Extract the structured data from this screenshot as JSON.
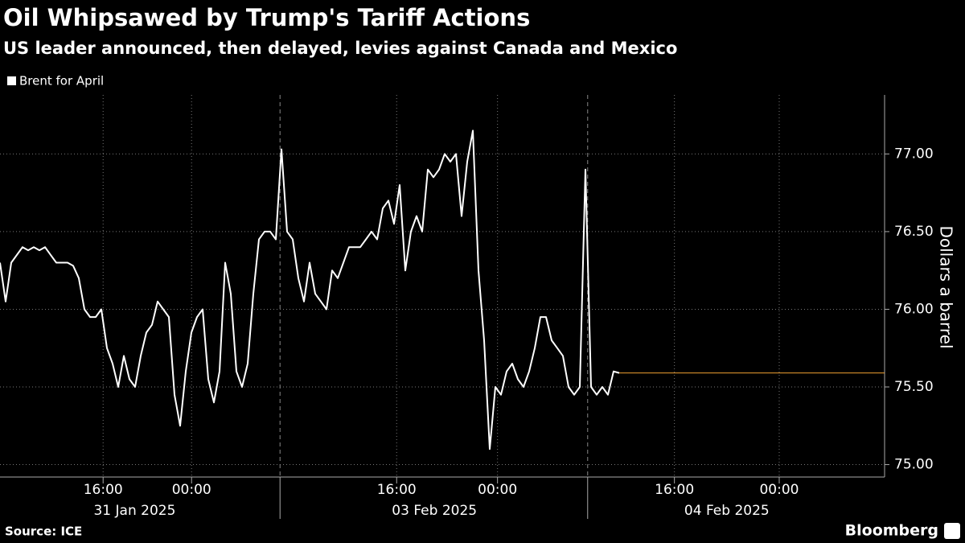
{
  "chart_data": {
    "type": "line",
    "title": "Oil Whipsawed by Trump's Tariff Actions",
    "subtitle": "US leader announced, then delayed, levies against Canada and Mexico",
    "y_label": "Dollars a barrel",
    "source": "Source: ICE",
    "brand": "Bloomberg",
    "series": [
      {
        "name": "Brent for April",
        "color": "#ffffff",
        "values": [
          76.3,
          76.05,
          76.3,
          76.35,
          76.4,
          76.38,
          76.4,
          76.38,
          76.4,
          76.35,
          76.3,
          76.3,
          76.3,
          76.28,
          76.2,
          76.0,
          75.95,
          75.95,
          76.0,
          75.75,
          75.65,
          75.5,
          75.7,
          75.55,
          75.5,
          75.7,
          75.85,
          75.9,
          76.05,
          76.0,
          75.95,
          75.45,
          75.25,
          75.6,
          75.85,
          75.95,
          76.0,
          75.55,
          75.4,
          75.6,
          76.3,
          76.1,
          75.6,
          75.5,
          75.65,
          76.1,
          76.45,
          76.5,
          76.5,
          76.45,
          77.03,
          76.5,
          76.45,
          76.2,
          76.05,
          76.3,
          76.1,
          76.05,
          76.0,
          76.25,
          76.2,
          76.3,
          76.4,
          76.4,
          76.4,
          76.45,
          76.5,
          76.45,
          76.65,
          76.7,
          76.55,
          76.8,
          76.25,
          76.5,
          76.6,
          76.5,
          76.9,
          76.85,
          76.9,
          77.0,
          76.95,
          77.0,
          76.6,
          76.95,
          77.15,
          76.25,
          75.8,
          75.1,
          75.5,
          75.45,
          75.6,
          75.65,
          75.55,
          75.5,
          75.6,
          75.75,
          75.95,
          75.95,
          75.8,
          75.75,
          75.7,
          75.5,
          75.45,
          75.5,
          76.9,
          75.5,
          75.45,
          75.5,
          75.45,
          75.6,
          75.59
        ]
      }
    ],
    "reference_line": {
      "value": 75.59,
      "color": "#f0a030"
    },
    "xlim": [
      0,
      157
    ],
    "xticks": [
      {
        "value": 18.3,
        "label": "16:00"
      },
      {
        "value": 34,
        "label": "00:00"
      },
      {
        "value": 70.4,
        "label": "16:00"
      },
      {
        "value": 88.3,
        "label": "00:00"
      },
      {
        "value": 119.7,
        "label": "16:00"
      },
      {
        "value": 138.3,
        "label": "00:00"
      }
    ],
    "date_labels": [
      {
        "value": 23.9,
        "label": "31 Jan 2025"
      },
      {
        "value": 77.1,
        "label": "03 Feb 2025"
      },
      {
        "value": 129,
        "label": "04 Feb 2025"
      }
    ],
    "separators": [
      49.7,
      104.3
    ],
    "ylim": [
      74.92,
      77.38
    ],
    "yticks": [
      {
        "value": 75,
        "label": "75.00"
      },
      {
        "value": 75.5,
        "label": "75.50"
      },
      {
        "value": 76,
        "label": "76.00"
      },
      {
        "value": 76.5,
        "label": "76.50"
      },
      {
        "value": 77,
        "label": "77.00"
      }
    ],
    "grid": true
  }
}
